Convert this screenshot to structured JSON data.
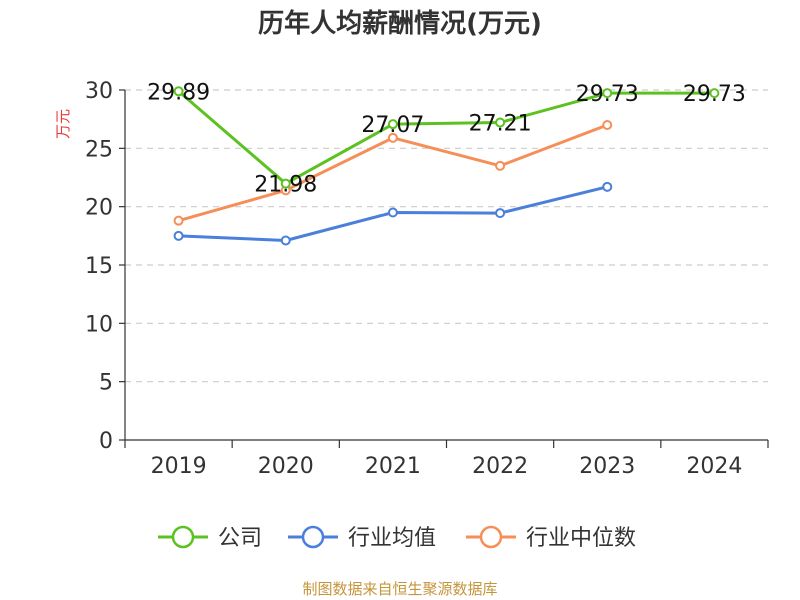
{
  "chart_data": {
    "type": "line",
    "title": "历年人均薪酬情况(万元)",
    "ylabel": "万元",
    "xlabel": "",
    "categories": [
      "2019",
      "2020",
      "2021",
      "2022",
      "2023",
      "2024"
    ],
    "ylim": [
      0,
      30
    ],
    "yticks": [
      0,
      5,
      10,
      15,
      20,
      25,
      30
    ],
    "grid": true,
    "legend_position": "bottom",
    "series": [
      {
        "name": "公司",
        "color": "#5bc221",
        "values": [
          29.89,
          21.98,
          27.07,
          27.21,
          29.73,
          29.73
        ],
        "labels": [
          "29.89",
          "21.98",
          "27.07",
          "27.21",
          "29.73",
          "29.73"
        ]
      },
      {
        "name": "行业均值",
        "color": "#4a7fdb",
        "values": [
          17.5,
          17.1,
          19.5,
          19.45,
          21.7,
          null
        ]
      },
      {
        "name": "行业中位数",
        "color": "#f68e57",
        "values": [
          18.8,
          21.4,
          25.9,
          23.5,
          27.0,
          null
        ]
      }
    ]
  },
  "colors": {
    "ylabel": "#e8393a",
    "source": "#c5953a",
    "axis": "#333333",
    "grid": "#cccccc"
  },
  "source": "制图数据来自恒生聚源数据库"
}
